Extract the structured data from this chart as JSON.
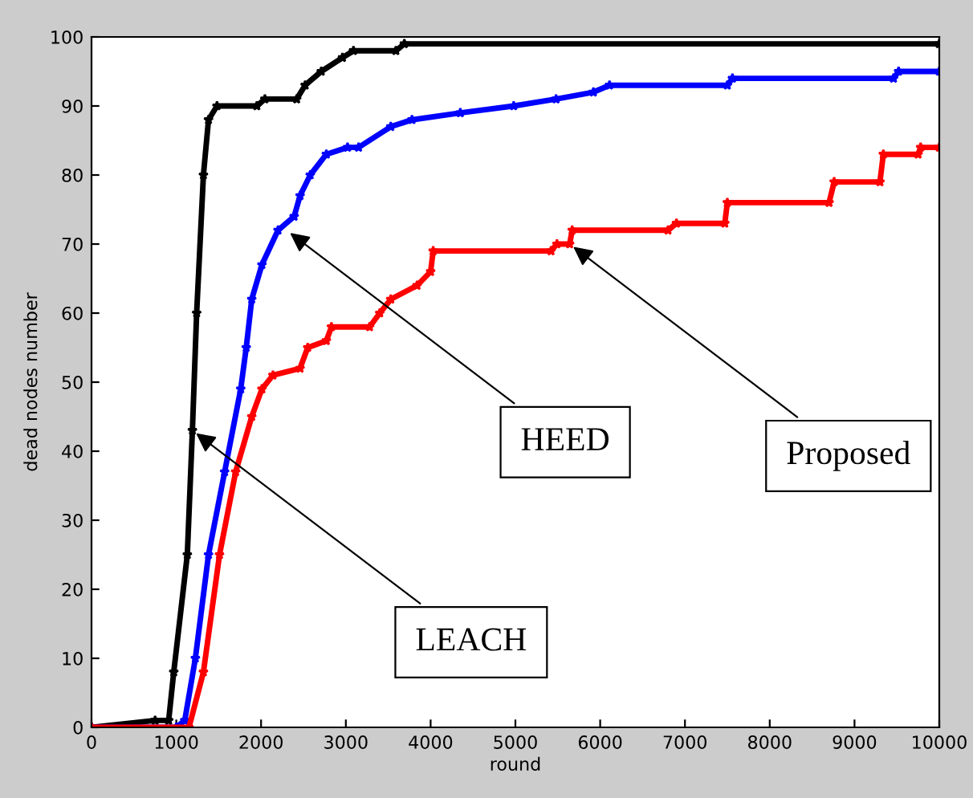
{
  "chart_data": {
    "type": "line",
    "xlabel": "round",
    "ylabel": "dead nodes number",
    "xlim": [
      0,
      10000
    ],
    "ylim": [
      0,
      100
    ],
    "xticks": [
      0,
      1000,
      2000,
      3000,
      4000,
      5000,
      6000,
      7000,
      8000,
      9000,
      10000
    ],
    "yticks": [
      0,
      10,
      20,
      30,
      40,
      50,
      60,
      70,
      80,
      90,
      100
    ],
    "grid": false,
    "legend": false,
    "marker": "star",
    "line_style": "solid",
    "series": [
      {
        "color": "#000000",
        "x": [
          0,
          750,
          910,
          970,
          1130,
          1190,
          1240,
          1320,
          1380,
          1480,
          1950,
          2045,
          2420,
          2520,
          2710,
          2960,
          3090,
          3590,
          3690,
          10000
        ],
        "values": [
          0,
          1,
          1,
          8,
          25,
          43,
          60,
          80,
          88,
          90,
          90,
          91,
          91,
          93,
          95,
          97,
          98,
          98,
          99,
          99
        ]
      },
      {
        "color": "#0000ff",
        "x": [
          0,
          1000,
          1100,
          1225,
          1380,
          1570,
          1760,
          1825,
          1890,
          2010,
          2200,
          2390,
          2460,
          2580,
          2770,
          3020,
          3150,
          3530,
          3780,
          4350,
          4980,
          5480,
          5920,
          6110,
          7500,
          7560,
          9460,
          9520,
          10000
        ],
        "values": [
          0,
          0,
          1,
          10,
          25,
          37,
          49,
          55,
          62,
          67,
          72,
          74,
          77,
          80,
          83,
          84,
          84,
          87,
          88,
          89,
          90,
          91,
          92,
          93,
          93,
          94,
          94,
          95,
          95
        ]
      },
      {
        "color": "#ff0000",
        "x": [
          0,
          1150,
          1320,
          1510,
          1700,
          1890,
          2010,
          2140,
          2460,
          2550,
          2770,
          2830,
          3280,
          3400,
          3530,
          3840,
          4000,
          4030,
          5420,
          5490,
          5640,
          5670,
          6800,
          6900,
          7470,
          7500,
          8700,
          8760,
          9300,
          9340,
          9750,
          9780,
          10000
        ],
        "values": [
          0,
          0,
          8,
          25,
          37,
          45,
          49,
          51,
          52,
          55,
          56,
          58,
          58,
          60,
          62,
          64,
          66,
          69,
          69,
          70,
          70,
          72,
          72,
          73,
          73,
          76,
          76,
          79,
          79,
          83,
          83,
          84,
          84
        ]
      }
    ],
    "annotations": [
      {
        "text": "LEACH",
        "x": 1190,
        "y": 43
      },
      {
        "text": "HEED",
        "x": 2300,
        "y": 72
      },
      {
        "text": "Proposed",
        "x": 5640,
        "y": 70
      }
    ]
  }
}
